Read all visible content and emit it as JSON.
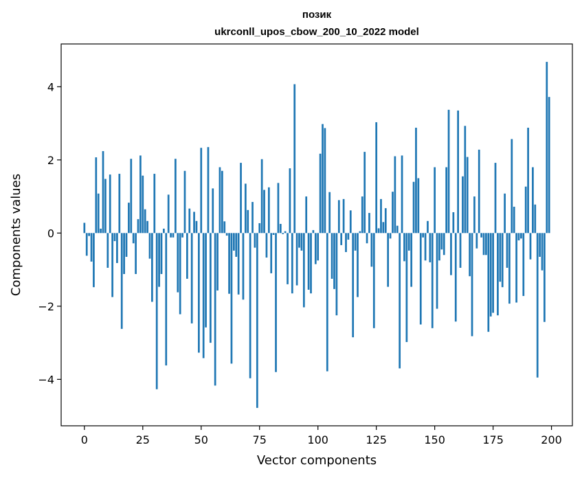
{
  "chart_data": {
    "type": "bar",
    "title": "позик",
    "subtitle": "ukrconll_upos_cbow_200_10_2022 model",
    "xlabel": "Vector components",
    "ylabel": "Components values",
    "xlim": [
      -9.95,
      208.95
    ],
    "ylim": [
      -5.27,
      5.17
    ],
    "xticks": [
      0,
      25,
      50,
      75,
      100,
      125,
      150,
      175,
      200
    ],
    "yticks": [
      -4,
      -2,
      0,
      2,
      4
    ],
    "grid": false,
    "legend": "none",
    "bar_color": "#1f77b4",
    "x": [
      0,
      1,
      2,
      3,
      4,
      5,
      6,
      7,
      8,
      9,
      10,
      11,
      12,
      13,
      14,
      15,
      16,
      17,
      18,
      19,
      20,
      21,
      22,
      23,
      24,
      25,
      26,
      27,
      28,
      29,
      30,
      31,
      32,
      33,
      34,
      35,
      36,
      37,
      38,
      39,
      40,
      41,
      42,
      43,
      44,
      45,
      46,
      47,
      48,
      49,
      50,
      51,
      52,
      53,
      54,
      55,
      56,
      57,
      58,
      59,
      60,
      61,
      62,
      63,
      64,
      65,
      66,
      67,
      68,
      69,
      70,
      71,
      72,
      73,
      74,
      75,
      76,
      77,
      78,
      79,
      80,
      81,
      82,
      83,
      84,
      85,
      86,
      87,
      88,
      89,
      90,
      91,
      92,
      93,
      94,
      95,
      96,
      97,
      98,
      99,
      100,
      101,
      102,
      103,
      104,
      105,
      106,
      107,
      108,
      109,
      110,
      111,
      112,
      113,
      114,
      115,
      116,
      117,
      118,
      119,
      120,
      121,
      122,
      123,
      124,
      125,
      126,
      127,
      128,
      129,
      130,
      131,
      132,
      133,
      134,
      135,
      136,
      137,
      138,
      139,
      140,
      141,
      142,
      143,
      144,
      145,
      146,
      147,
      148,
      149,
      150,
      151,
      152,
      153,
      154,
      155,
      156,
      157,
      158,
      159,
      160,
      161,
      162,
      163,
      164,
      165,
      166,
      167,
      168,
      169,
      170,
      171,
      172,
      173,
      174,
      175,
      176,
      177,
      178,
      179,
      180,
      181,
      182,
      183,
      184,
      185,
      186,
      187,
      188,
      189,
      190,
      191,
      192,
      193,
      194,
      195,
      196,
      197,
      198,
      199
    ],
    "values": [
      0.28,
      -0.62,
      -0.08,
      -0.78,
      -1.48,
      2.07,
      1.08,
      0.12,
      2.24,
      1.48,
      -0.95,
      1.6,
      -1.75,
      -0.22,
      -0.82,
      1.62,
      -2.62,
      -1.12,
      -0.65,
      0.83,
      2.03,
      -0.28,
      -1.12,
      0.38,
      2.12,
      1.57,
      0.65,
      0.33,
      -0.7,
      -1.88,
      1.62,
      -4.27,
      -1.47,
      -1.12,
      0.12,
      -3.62,
      1.05,
      -0.12,
      -0.12,
      2.03,
      -1.62,
      -2.22,
      -0.12,
      1.7,
      -1.25,
      0.67,
      -2.47,
      0.58,
      0.33,
      -3.27,
      2.33,
      -3.42,
      -2.58,
      2.35,
      -3.0,
      1.22,
      -4.17,
      -1.57,
      1.8,
      1.7,
      0.32,
      -0.07,
      -1.66,
      -3.57,
      -0.48,
      -0.65,
      -1.68,
      1.92,
      -1.82,
      1.35,
      0.63,
      -3.97,
      0.85,
      -0.4,
      -4.78,
      0.27,
      2.02,
      1.18,
      -0.67,
      1.25,
      -1.1,
      -0.05,
      -3.8,
      1.37,
      0.25,
      -0.03,
      0.05,
      -1.4,
      1.77,
      -1.65,
      4.07,
      -1.43,
      -0.4,
      -0.48,
      -2.03,
      1.0,
      -1.55,
      -1.65,
      0.08,
      -0.85,
      -0.75,
      2.17,
      2.98,
      2.87,
      -3.78,
      1.12,
      -1.25,
      -1.53,
      -2.25,
      0.9,
      -0.33,
      0.93,
      -0.52,
      -0.18,
      0.62,
      -2.85,
      -0.48,
      -1.75,
      0.05,
      1.0,
      2.22,
      -0.28,
      0.55,
      -0.92,
      -2.6,
      3.03,
      0.13,
      0.93,
      0.3,
      0.68,
      -1.47,
      -0.15,
      1.13,
      2.1,
      0.2,
      -3.7,
      2.12,
      -0.77,
      -2.98,
      -0.48,
      -1.47,
      1.4,
      2.88,
      1.5,
      -2.5,
      -0.12,
      -0.75,
      0.33,
      -0.8,
      -2.6,
      1.8,
      -2.07,
      -0.75,
      -0.45,
      -0.6,
      1.8,
      3.37,
      -1.15,
      0.57,
      -2.42,
      3.35,
      -0.95,
      1.55,
      2.93,
      2.08,
      -1.18,
      -2.82,
      1.0,
      -0.42,
      2.28,
      -0.12,
      -0.6,
      -0.6,
      -2.7,
      -2.28,
      -2.18,
      1.92,
      -2.25,
      -1.33,
      -1.48,
      1.08,
      -0.95,
      -1.93,
      2.57,
      0.72,
      -1.9,
      -0.2,
      -0.15,
      -1.72,
      1.27,
      2.88,
      -0.72,
      1.8,
      0.78,
      -3.95,
      -0.65,
      -1.02,
      -2.43,
      4.68,
      3.72
    ]
  }
}
